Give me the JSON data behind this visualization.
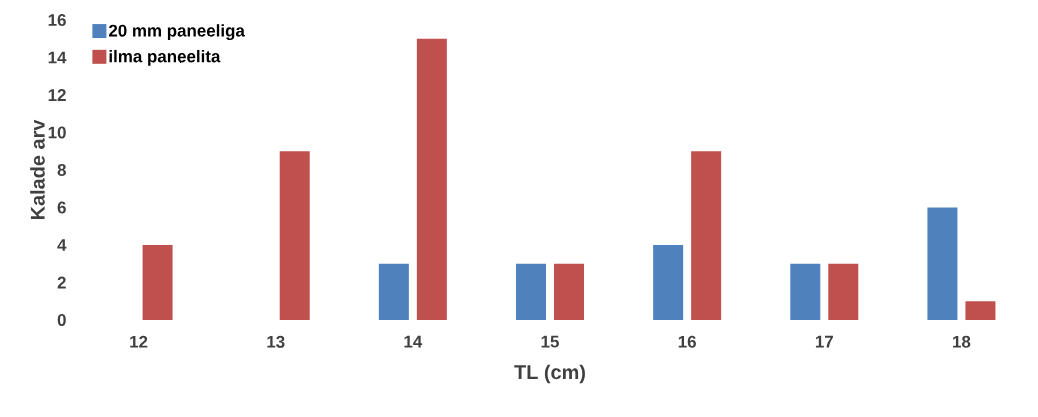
{
  "chart_data": {
    "type": "bar",
    "xlabel": "TL (cm)",
    "ylabel": "Kalade arv",
    "categories": [
      "12",
      "13",
      "14",
      "15",
      "16",
      "17",
      "18"
    ],
    "series": [
      {
        "name": "20 mm paneeliga",
        "color": "#4f81bd",
        "values": [
          0,
          0,
          3,
          3,
          4,
          3,
          6
        ]
      },
      {
        "name": "ilma paneelita",
        "color": "#c0504d",
        "values": [
          4,
          9,
          15,
          3,
          9,
          3,
          1
        ]
      }
    ],
    "ylim": [
      0,
      16
    ],
    "yticks": [
      0,
      2,
      4,
      6,
      8,
      10,
      12,
      14,
      16
    ],
    "grid": false,
    "legend": "top left"
  }
}
